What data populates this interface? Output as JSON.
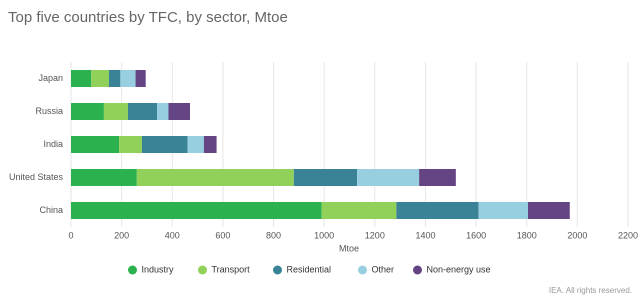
{
  "chart_data": {
    "type": "stacked-barh",
    "title": "Top five countries by TFC, by sector, Mtoe",
    "x_label": "Mtoe",
    "categories": [
      "Japan",
      "Russia",
      "India",
      "United States",
      "China"
    ],
    "series": [
      {
        "name": "Industry",
        "color": "#2bb24f",
        "values": [
          80,
          130,
          190,
          260,
          990
        ]
      },
      {
        "name": "Transport",
        "color": "#92d159",
        "values": [
          70,
          95,
          90,
          620,
          295
        ]
      },
      {
        "name": "Residential",
        "color": "#3a8396",
        "values": [
          45,
          115,
          180,
          250,
          325
        ]
      },
      {
        "name": "Other",
        "color": "#97cfe0",
        "values": [
          60,
          45,
          65,
          245,
          195
        ]
      },
      {
        "name": "Non-energy use",
        "color": "#654484",
        "values": [
          40,
          85,
          50,
          145,
          165
        ]
      }
    ],
    "xlim": [
      0,
      2200
    ],
    "xticks": [
      0,
      200,
      400,
      600,
      800,
      1000,
      1200,
      1400,
      1600,
      1800,
      2000,
      2200
    ],
    "grid": true,
    "legend": "bottom",
    "source": "IEA. All rights reserved."
  }
}
